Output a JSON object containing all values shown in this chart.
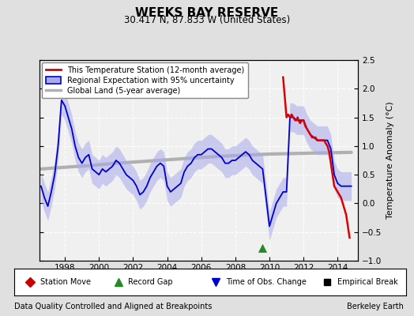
{
  "title": "WEEKS BAY RESERVE",
  "subtitle": "30.417 N, 87.833 W (United States)",
  "ylabel": "Temperature Anomaly (°C)",
  "footer_left": "Data Quality Controlled and Aligned at Breakpoints",
  "footer_right": "Berkeley Earth",
  "xlim": [
    1996.5,
    2015.2
  ],
  "ylim": [
    -1.0,
    2.5
  ],
  "yticks": [
    -1.0,
    -0.5,
    0.0,
    0.5,
    1.0,
    1.5,
    2.0,
    2.5
  ],
  "xticks": [
    1998,
    2000,
    2002,
    2004,
    2006,
    2008,
    2010,
    2012,
    2014
  ],
  "bg_color": "#e0e0e0",
  "plot_bg_color": "#f0f0f0",
  "grid_color": "#ffffff",
  "regional_line_color": "#0000cc",
  "regional_fill_color": "#aaaaee",
  "station_line_color": "#dd0000",
  "global_land_color": "#b0b0b0",
  "record_gap_x": 2009.6,
  "record_gap_y": -0.78,
  "regional_data": {
    "x": [
      1996.6,
      1996.8,
      1997.0,
      1997.2,
      1997.4,
      1997.6,
      1997.8,
      1998.0,
      1998.2,
      1998.4,
      1998.6,
      1998.8,
      1999.0,
      1999.2,
      1999.4,
      1999.6,
      1999.8,
      2000.0,
      2000.2,
      2000.4,
      2000.6,
      2000.8,
      2001.0,
      2001.2,
      2001.4,
      2001.6,
      2001.8,
      2002.0,
      2002.2,
      2002.4,
      2002.6,
      2002.8,
      2003.0,
      2003.2,
      2003.4,
      2003.6,
      2003.8,
      2004.0,
      2004.2,
      2004.4,
      2004.6,
      2004.8,
      2005.0,
      2005.2,
      2005.4,
      2005.6,
      2005.8,
      2006.0,
      2006.2,
      2006.4,
      2006.6,
      2006.8,
      2007.0,
      2007.2,
      2007.4,
      2007.6,
      2007.8,
      2008.0,
      2008.2,
      2008.4,
      2008.6,
      2008.8,
      2009.0,
      2009.2,
      2009.4,
      2009.6,
      2010.0,
      2010.2,
      2010.4,
      2010.6,
      2010.8,
      2011.0,
      2011.2,
      2011.4,
      2011.6,
      2011.8,
      2012.0,
      2012.2,
      2012.4,
      2012.6,
      2012.8,
      2013.0,
      2013.2,
      2013.4,
      2013.6,
      2013.8,
      2014.0,
      2014.2,
      2014.4,
      2014.6,
      2014.8
    ],
    "y": [
      0.3,
      0.1,
      -0.05,
      0.2,
      0.5,
      1.0,
      1.8,
      1.7,
      1.5,
      1.3,
      1.0,
      0.8,
      0.7,
      0.8,
      0.85,
      0.6,
      0.55,
      0.5,
      0.6,
      0.55,
      0.6,
      0.65,
      0.75,
      0.7,
      0.6,
      0.5,
      0.45,
      0.4,
      0.3,
      0.15,
      0.2,
      0.3,
      0.45,
      0.55,
      0.65,
      0.7,
      0.65,
      0.3,
      0.2,
      0.25,
      0.3,
      0.35,
      0.55,
      0.65,
      0.7,
      0.8,
      0.85,
      0.85,
      0.9,
      0.95,
      0.95,
      0.9,
      0.85,
      0.8,
      0.7,
      0.7,
      0.75,
      0.75,
      0.8,
      0.85,
      0.9,
      0.85,
      0.75,
      0.7,
      0.65,
      0.6,
      -0.4,
      -0.2,
      0.0,
      0.1,
      0.2,
      0.2,
      1.5,
      1.5,
      1.45,
      1.45,
      1.45,
      1.3,
      1.2,
      1.15,
      1.1,
      1.1,
      1.1,
      1.1,
      0.95,
      0.5,
      0.35,
      0.3,
      0.3,
      0.3,
      0.3
    ],
    "upper": [
      0.55,
      0.35,
      0.2,
      0.45,
      0.75,
      1.25,
      2.05,
      1.95,
      1.75,
      1.55,
      1.25,
      1.05,
      0.95,
      1.05,
      1.1,
      0.85,
      0.8,
      0.75,
      0.85,
      0.8,
      0.85,
      0.9,
      1.0,
      0.95,
      0.85,
      0.75,
      0.7,
      0.65,
      0.55,
      0.4,
      0.45,
      0.55,
      0.7,
      0.8,
      0.9,
      0.95,
      0.9,
      0.55,
      0.45,
      0.5,
      0.55,
      0.6,
      0.8,
      0.9,
      0.95,
      1.05,
      1.1,
      1.1,
      1.15,
      1.2,
      1.2,
      1.15,
      1.1,
      1.05,
      0.95,
      0.95,
      1.0,
      1.0,
      1.05,
      1.1,
      1.15,
      1.1,
      1.0,
      0.95,
      0.9,
      0.85,
      -0.15,
      0.05,
      0.25,
      0.35,
      0.45,
      0.45,
      1.75,
      1.75,
      1.7,
      1.7,
      1.7,
      1.55,
      1.45,
      1.4,
      1.35,
      1.35,
      1.35,
      1.35,
      1.2,
      0.75,
      0.6,
      0.55,
      0.55,
      0.55,
      0.55
    ],
    "lower": [
      0.05,
      -0.15,
      -0.3,
      -0.05,
      0.25,
      0.75,
      1.55,
      1.45,
      1.25,
      1.05,
      0.75,
      0.55,
      0.45,
      0.55,
      0.6,
      0.35,
      0.3,
      0.25,
      0.35,
      0.3,
      0.35,
      0.4,
      0.5,
      0.45,
      0.35,
      0.25,
      0.2,
      0.15,
      0.05,
      -0.1,
      -0.05,
      0.05,
      0.2,
      0.3,
      0.4,
      0.45,
      0.4,
      0.05,
      -0.05,
      0.0,
      0.05,
      0.1,
      0.3,
      0.4,
      0.45,
      0.55,
      0.6,
      0.6,
      0.65,
      0.7,
      0.7,
      0.65,
      0.6,
      0.55,
      0.45,
      0.45,
      0.5,
      0.5,
      0.55,
      0.6,
      0.65,
      0.6,
      0.5,
      0.45,
      0.4,
      0.35,
      -0.65,
      -0.45,
      -0.25,
      -0.15,
      -0.05,
      -0.05,
      1.25,
      1.25,
      1.2,
      1.2,
      1.2,
      1.05,
      0.95,
      0.9,
      0.85,
      0.85,
      0.85,
      0.85,
      0.7,
      0.25,
      0.1,
      0.05,
      0.05,
      0.05,
      0.05
    ]
  },
  "station_data": {
    "x": [
      2010.8,
      2011.0,
      2011.1,
      2011.2,
      2011.3,
      2011.4,
      2011.5,
      2011.6,
      2011.65,
      2011.7,
      2011.8,
      2011.9,
      2012.0,
      2012.1,
      2012.2,
      2012.3,
      2012.4,
      2012.5,
      2012.6,
      2012.7,
      2012.8,
      2012.9,
      2013.0,
      2013.1,
      2013.2,
      2013.3,
      2013.4,
      2013.5,
      2013.6,
      2013.7,
      2013.8,
      2014.0,
      2014.2,
      2014.5,
      2014.7
    ],
    "y": [
      2.2,
      1.5,
      1.55,
      1.5,
      1.55,
      1.5,
      1.45,
      1.45,
      1.5,
      1.45,
      1.4,
      1.45,
      1.45,
      1.35,
      1.3,
      1.25,
      1.2,
      1.15,
      1.15,
      1.15,
      1.1,
      1.1,
      1.1,
      1.1,
      1.1,
      1.05,
      1.0,
      0.9,
      0.7,
      0.5,
      0.3,
      0.2,
      0.1,
      -0.2,
      -0.6
    ]
  },
  "global_land_data": {
    "x": [
      1996.6,
      1998.0,
      1999.5,
      2001.0,
      2002.5,
      2004.0,
      2005.5,
      2007.0,
      2008.5,
      2010.0,
      2011.5,
      2013.0,
      2014.8
    ],
    "y": [
      0.6,
      0.63,
      0.66,
      0.7,
      0.73,
      0.76,
      0.79,
      0.82,
      0.84,
      0.86,
      0.87,
      0.88,
      0.89
    ]
  }
}
